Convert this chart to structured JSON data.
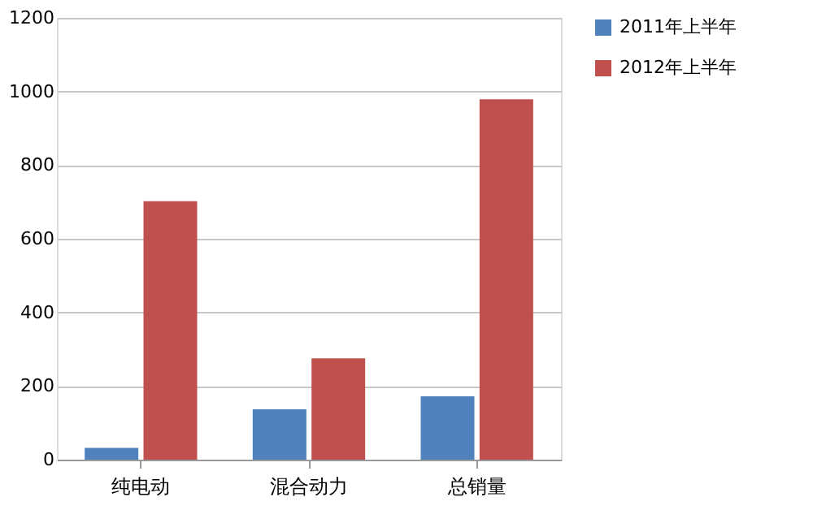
{
  "chart_data": {
    "type": "bar",
    "categories": [
      "纯电动",
      "混合动力",
      "总销量"
    ],
    "series": [
      {
        "name": "2011年上半年",
        "color": "#4f81bd",
        "values": [
          32,
          137,
          172
        ]
      },
      {
        "name": "2012年上半年",
        "color": "#c0504d",
        "values": [
          702,
          275,
          979
        ]
      }
    ],
    "ylim": [
      0,
      1200
    ],
    "yticks": [
      0,
      200,
      400,
      600,
      800,
      1000,
      1200
    ],
    "grid": "y",
    "legend": "right"
  }
}
